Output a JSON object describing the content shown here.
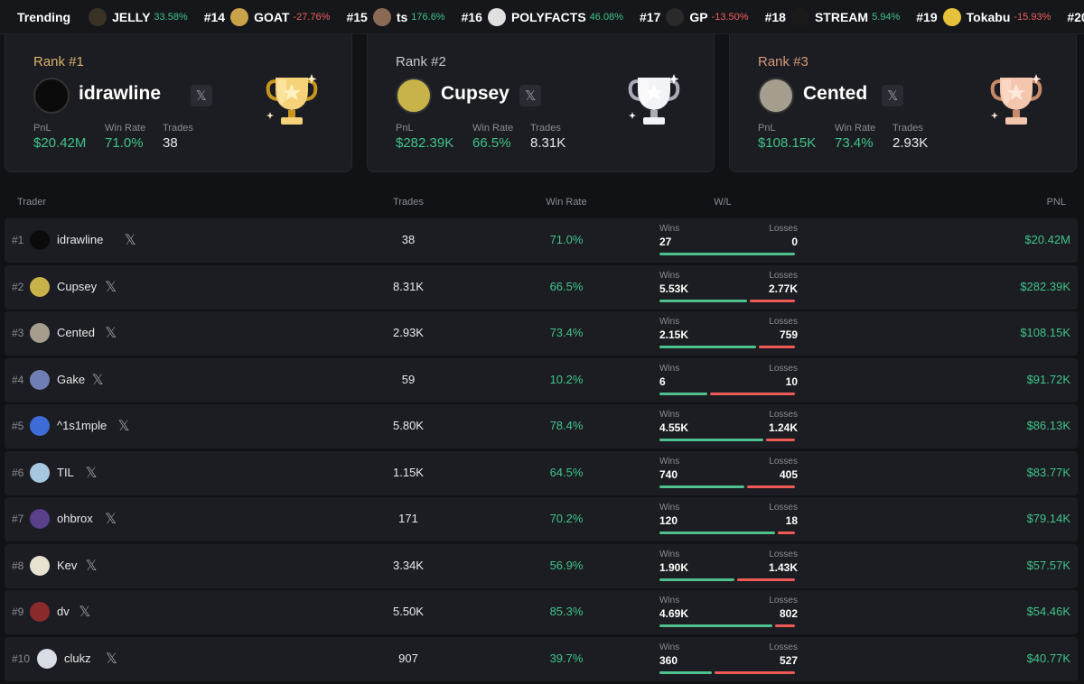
{
  "trending": {
    "label": "Trending",
    "items": [
      {
        "rank": "",
        "name": "JELLY",
        "change": "33.58%",
        "dir": "pos",
        "icon": "jelly-token-icon",
        "color": "#3a3224"
      },
      {
        "rank": "#14",
        "name": "GOAT",
        "change": "-27.76%",
        "dir": "neg",
        "icon": "goat-token-icon",
        "color": "#c9a24a"
      },
      {
        "rank": "#15",
        "name": "ts",
        "change": "176.6%",
        "dir": "pos",
        "icon": "ts-token-icon",
        "color": "#8a6a55"
      },
      {
        "rank": "#16",
        "name": "POLYFACTS",
        "change": "46.08%",
        "dir": "pos",
        "icon": "polyfacts-token-icon",
        "color": "#e0e0e0"
      },
      {
        "rank": "#17",
        "name": "GP",
        "change": "-13.50%",
        "dir": "neg",
        "icon": "gp-token-icon",
        "color": "#2a2a2a"
      },
      {
        "rank": "#18",
        "name": "STREAM",
        "change": "5.94%",
        "dir": "pos",
        "icon": "stream-token-icon",
        "color": "#1a1a1a"
      },
      {
        "rank": "#19",
        "name": "Tokabu",
        "change": "-15.93%",
        "dir": "neg",
        "icon": "tokabu-token-icon",
        "color": "#e6c23a"
      },
      {
        "rank": "#20",
        "name": "",
        "change": "",
        "dir": "pos",
        "icon": "token-icon",
        "color": "#444"
      }
    ]
  },
  "podium": [
    {
      "rank_label": "Rank #1",
      "name": "idrawline",
      "pnl_label": "PnL",
      "pnl": "$20.42M",
      "winrate_label": "Win Rate",
      "winrate": "71.0%",
      "trades_label": "Trades",
      "trades": "38",
      "accent": "#d9b36a",
      "trophy": "gold",
      "avatar_color": "#0b0b0c"
    },
    {
      "rank_label": "Rank #2",
      "name": "Cupsey",
      "pnl_label": "PnL",
      "pnl": "$282.39K",
      "winrate_label": "Win Rate",
      "winrate": "66.5%",
      "trades_label": "Trades",
      "trades": "8.31K",
      "accent": "#c6c8cf",
      "trophy": "silver",
      "avatar_color": "#c8b24a"
    },
    {
      "rank_label": "Rank #3",
      "name": "Cented",
      "pnl_label": "PnL",
      "pnl": "$108.15K",
      "winrate_label": "Win Rate",
      "winrate": "73.4%",
      "trades_label": "Trades",
      "trades": "2.93K",
      "accent": "#d59a7a",
      "trophy": "bronze",
      "avatar_color": "#a59d8e"
    }
  ],
  "table": {
    "headers": {
      "trader": "Trader",
      "trades": "Trades",
      "winrate": "Win Rate",
      "wl": "W/L",
      "pnl": "PNL"
    },
    "wins_label": "Wins",
    "losses_label": "Losses",
    "rows": [
      {
        "rank": "#1",
        "name": "idrawline",
        "trades": "38",
        "winrate": "71.0%",
        "wins": "27",
        "losses": "0",
        "win_frac": 1.0,
        "pnl": "$20.42M",
        "avatar_color": "#0b0b0c"
      },
      {
        "rank": "#2",
        "name": "Cupsey",
        "trades": "8.31K",
        "winrate": "66.5%",
        "wins": "5.53K",
        "losses": "2.77K",
        "win_frac": 0.665,
        "pnl": "$282.39K",
        "avatar_color": "#c8b24a"
      },
      {
        "rank": "#3",
        "name": "Cented",
        "trades": "2.93K",
        "winrate": "73.4%",
        "wins": "2.15K",
        "losses": "759",
        "win_frac": 0.734,
        "pnl": "$108.15K",
        "avatar_color": "#a59d8e"
      },
      {
        "rank": "#4",
        "name": "Gake",
        "trades": "59",
        "winrate": "10.2%",
        "wins": "6",
        "losses": "10",
        "win_frac": 0.375,
        "pnl": "$91.72K",
        "avatar_color": "#6f7fb5"
      },
      {
        "rank": "#5",
        "name": "^1s1mple",
        "trades": "5.80K",
        "winrate": "78.4%",
        "wins": "4.55K",
        "losses": "1.24K",
        "win_frac": 0.786,
        "pnl": "$86.13K",
        "avatar_color": "#3d6cd6"
      },
      {
        "rank": "#6",
        "name": "TIL",
        "trades": "1.15K",
        "winrate": "64.5%",
        "wins": "740",
        "losses": "405",
        "win_frac": 0.646,
        "pnl": "$83.77K",
        "avatar_color": "#a7c6e0"
      },
      {
        "rank": "#7",
        "name": "ohbrox",
        "trades": "171",
        "winrate": "70.2%",
        "wins": "120",
        "losses": "18",
        "win_frac": 0.87,
        "pnl": "$79.14K",
        "avatar_color": "#5a3f8a"
      },
      {
        "rank": "#8",
        "name": "Kev",
        "trades": "3.34K",
        "winrate": "56.9%",
        "wins": "1.90K",
        "losses": "1.43K",
        "win_frac": 0.571,
        "pnl": "$57.57K",
        "avatar_color": "#e6e2cf"
      },
      {
        "rank": "#9",
        "name": "dv",
        "trades": "5.50K",
        "winrate": "85.3%",
        "wins": "4.69K",
        "losses": "802",
        "win_frac": 0.854,
        "pnl": "$54.46K",
        "avatar_color": "#8a2a2a"
      },
      {
        "rank": "#10",
        "name": "clukz",
        "trades": "907",
        "winrate": "39.7%",
        "wins": "360",
        "losses": "527",
        "win_frac": 0.406,
        "pnl": "$40.77K",
        "avatar_color": "#d8dde6"
      }
    ]
  },
  "colors": {
    "positive": "#3fc48b",
    "negative": "#f0605d",
    "win_bar": "#4fc18f",
    "loss_bar": "#ef5a55"
  }
}
